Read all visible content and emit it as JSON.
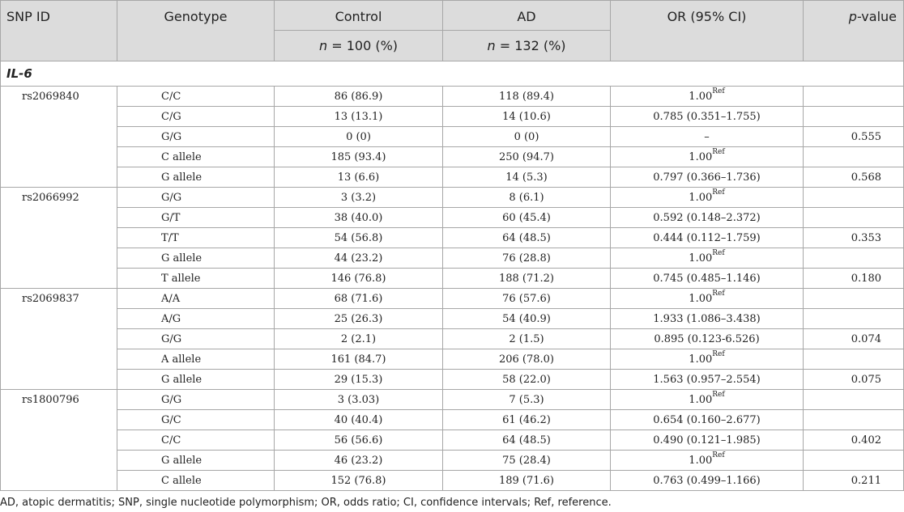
{
  "header": {
    "snp_id": "SNP ID",
    "genotype": "Genotype",
    "control": "Control",
    "ad": "AD",
    "or": "OR (95% CI)",
    "p_italic": "p",
    "p_rest": "-value",
    "n_label": "n",
    "control_n": " = 100 (%)",
    "ad_n": " = 132 (%)"
  },
  "section": "IL-6",
  "ref_sup": "Ref",
  "groups": [
    {
      "snp": "rs2069840",
      "rows": [
        {
          "genotype": "C/C",
          "control": "86 (86.9)",
          "ad": "118 (89.4)",
          "or": "1.00",
          "ref": true,
          "p": ""
        },
        {
          "genotype": "C/G",
          "control": "13 (13.1)",
          "ad": "14 (10.6)",
          "or": "0.785 (0.351–1.755)",
          "ref": false,
          "p": ""
        },
        {
          "genotype": "G/G",
          "control": "0 (0)",
          "ad": "0 (0)",
          "or": "–",
          "ref": false,
          "p": "0.555"
        },
        {
          "genotype": "C allele",
          "control": "185 (93.4)",
          "ad": "250 (94.7)",
          "or": "1.00",
          "ref": true,
          "p": ""
        },
        {
          "genotype": "G allele",
          "control": "13 (6.6)",
          "ad": "14 (5.3)",
          "or": "0.797 (0.366–1.736)",
          "ref": false,
          "p": "0.568"
        }
      ]
    },
    {
      "snp": "rs2066992",
      "rows": [
        {
          "genotype": "G/G",
          "control": "3 (3.2)",
          "ad": "8 (6.1)",
          "or": "1.00",
          "ref": true,
          "p": ""
        },
        {
          "genotype": "G/T",
          "control": "38 (40.0)",
          "ad": "60 (45.4)",
          "or": "0.592 (0.148–2.372)",
          "ref": false,
          "p": ""
        },
        {
          "genotype": "T/T",
          "control": "54 (56.8)",
          "ad": "64 (48.5)",
          "or": "0.444 (0.112–1.759)",
          "ref": false,
          "p": "0.353"
        },
        {
          "genotype": "G allele",
          "control": "44 (23.2)",
          "ad": "76 (28.8)",
          "or": "1.00",
          "ref": true,
          "p": ""
        },
        {
          "genotype": "T allele",
          "control": "146 (76.8)",
          "ad": "188 (71.2)",
          "or": "0.745 (0.485–1.146)",
          "ref": false,
          "p": "0.180"
        }
      ]
    },
    {
      "snp": "rs2069837",
      "rows": [
        {
          "genotype": "A/A",
          "control": "68 (71.6)",
          "ad": "76 (57.6)",
          "or": "1.00",
          "ref": true,
          "p": ""
        },
        {
          "genotype": "A/G",
          "control": "25 (26.3)",
          "ad": "54 (40.9)",
          "or": "1.933 (1.086–3.438)",
          "ref": false,
          "p": ""
        },
        {
          "genotype": "G/G",
          "control": "2 (2.1)",
          "ad": "2 (1.5)",
          "or": "0.895 (0.123-6.526)",
          "ref": false,
          "p": "0.074"
        },
        {
          "genotype": "A allele",
          "control": "161 (84.7)",
          "ad": "206 (78.0)",
          "or": "1.00",
          "ref": true,
          "p": ""
        },
        {
          "genotype": "G allele",
          "control": "29 (15.3)",
          "ad": "58 (22.0)",
          "or": "1.563 (0.957–2.554)",
          "ref": false,
          "p": "0.075"
        }
      ]
    },
    {
      "snp": "rs1800796",
      "rows": [
        {
          "genotype": "G/G",
          "control": "3 (3.03)",
          "ad": "7 (5.3)",
          "or": "1.00",
          "ref": true,
          "p": ""
        },
        {
          "genotype": "G/C",
          "control": "40 (40.4)",
          "ad": "61 (46.2)",
          "or": "0.654 (0.160–2.677)",
          "ref": false,
          "p": ""
        },
        {
          "genotype": "C/C",
          "control": "56 (56.6)",
          "ad": "64 (48.5)",
          "or": "0.490 (0.121–1.985)",
          "ref": false,
          "p": "0.402"
        },
        {
          "genotype": "G allele",
          "control": "46 (23.2)",
          "ad": "75 (28.4)",
          "or": "1.00",
          "ref": true,
          "p": ""
        },
        {
          "genotype": "C allele",
          "control": "152 (76.8)",
          "ad": "189 (71.6)",
          "or": "0.763 (0.499–1.166)",
          "ref": false,
          "p": "0.211"
        }
      ]
    }
  ],
  "footnote": "AD, atopic dermatitis; SNP, single nucleotide polymorphism; OR, odds ratio; CI, confidence intervals; Ref, reference."
}
